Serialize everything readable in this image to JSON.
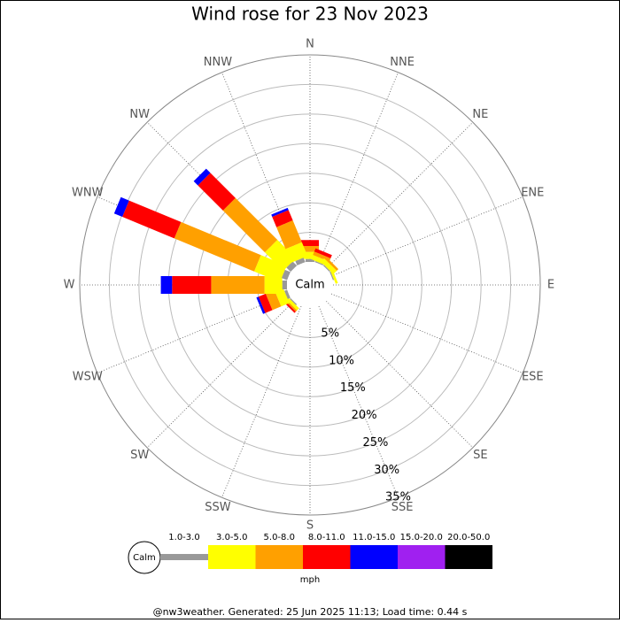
{
  "chart_data": {
    "type": "wind-rose",
    "title": "Wind rose for 23 Nov 2023",
    "calm_label": "Calm",
    "directions": [
      "N",
      "NNE",
      "NE",
      "ENE",
      "E",
      "ESE",
      "SE",
      "SSE",
      "S",
      "SSW",
      "SW",
      "WSW",
      "W",
      "WNW",
      "NW",
      "NNW"
    ],
    "rlim": [
      0,
      35
    ],
    "rticks": [
      {
        "value": 5,
        "label": "5%"
      },
      {
        "value": 10,
        "label": "10%"
      },
      {
        "value": 15,
        "label": "15%"
      },
      {
        "value": 20,
        "label": "20%"
      },
      {
        "value": 25,
        "label": "25%"
      },
      {
        "value": 30,
        "label": "30%"
      },
      {
        "value": 35,
        "label": "35%"
      }
    ],
    "series": [
      {
        "name": "1.0-3.0",
        "color": "#999999",
        "values": [
          0.5,
          0.2,
          0.2,
          0.2,
          0,
          0,
          0,
          0,
          0,
          0,
          0.2,
          0.5,
          0.8,
          1,
          1,
          0.8
        ]
      },
      {
        "name": "3.0-5.0",
        "color": "#ffff00",
        "values": [
          1.2,
          0.8,
          0.8,
          0.4,
          0,
          0,
          0,
          0,
          0,
          0,
          0.5,
          1.5,
          3,
          4.7,
          4.4,
          2.5
        ]
      },
      {
        "name": "5.0-8.0",
        "color": "#ffa000",
        "values": [
          1,
          0.6,
          0.4,
          0,
          0,
          0,
          0,
          0,
          0,
          0,
          0.3,
          1.6,
          9,
          14.6,
          10,
          4
        ]
      },
      {
        "name": "8.0-11.0",
        "color": "#ff0000",
        "values": [
          1,
          0.6,
          0,
          0,
          0,
          0,
          0,
          0,
          0,
          0,
          0.3,
          1.3,
          6.6,
          9.5,
          6,
          1.9
        ]
      },
      {
        "name": "11.0-15.0",
        "color": "#0000ff",
        "values": [
          0,
          0,
          0,
          0,
          0,
          0,
          0,
          0,
          0,
          0,
          0,
          0.4,
          1.9,
          1.5,
          1,
          0.4
        ]
      },
      {
        "name": "15.0-20.0",
        "color": "#a020f0",
        "values": [
          0,
          0,
          0,
          0,
          0,
          0,
          0,
          0,
          0,
          0,
          0,
          0,
          0,
          0,
          0,
          0
        ]
      },
      {
        "name": "20.0-50.0",
        "color": "#000000",
        "values": [
          0,
          0,
          0,
          0,
          0,
          0,
          0,
          0,
          0,
          0,
          0,
          0,
          0,
          0,
          0,
          0
        ]
      }
    ],
    "legend_unit": "mph",
    "footer": "@nw3weather. Generated: 25 Jun 2025 11:13; Load time: 0.44 s"
  }
}
